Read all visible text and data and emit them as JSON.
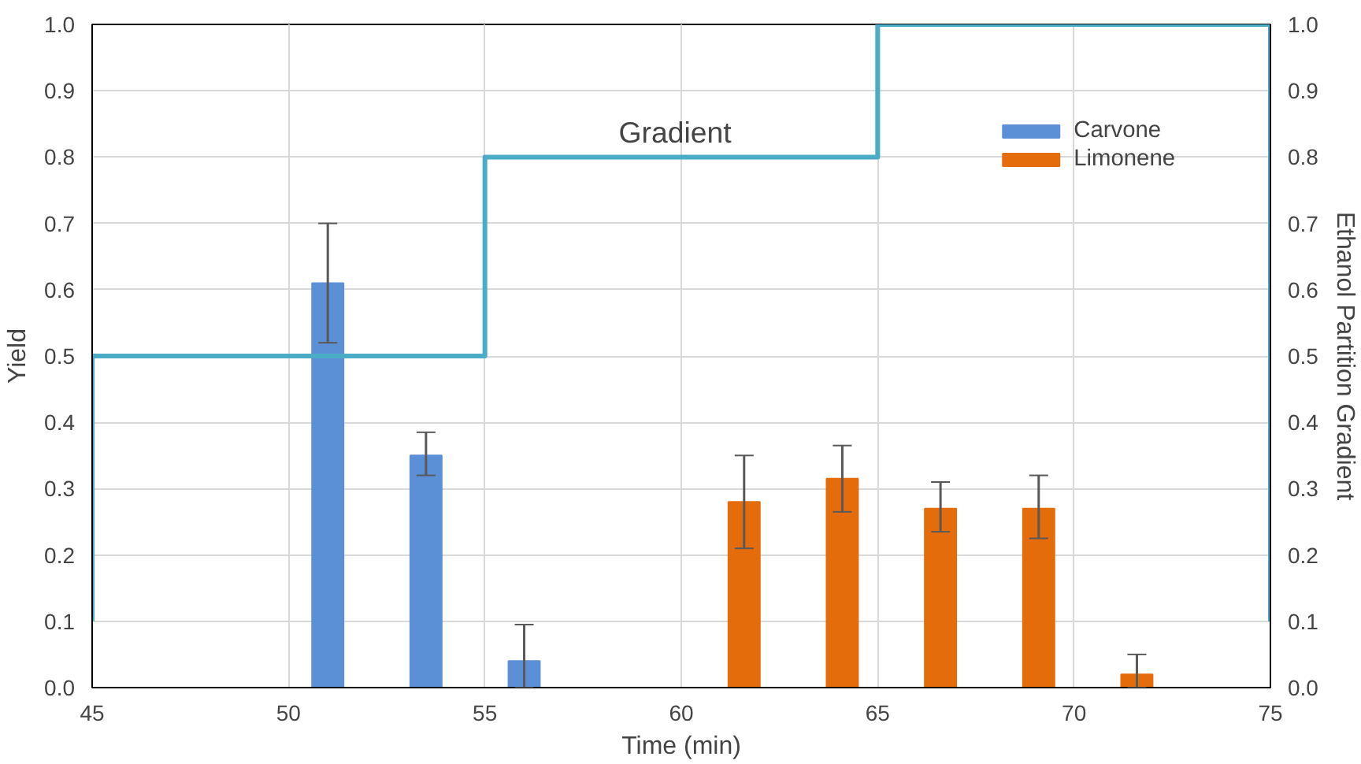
{
  "chart_data": {
    "type": "bar",
    "xlabel": "Time (min)",
    "ylabel": "Yield",
    "y2label": "Ethanol Partition Gradient",
    "xlim": [
      45,
      75
    ],
    "xticks": [
      45,
      50,
      55,
      60,
      65,
      70,
      75
    ],
    "ylim": [
      0,
      1
    ],
    "yticks": [
      {
        "value": 0,
        "label": "0.0"
      },
      0.1,
      0.2,
      0.3,
      0.4,
      0.5,
      0.6,
      0.7,
      0.8,
      0.9,
      {
        "value": 1,
        "label": "1.0"
      }
    ],
    "y2lim": [
      0,
      1
    ],
    "y2ticks": [
      {
        "value": 0,
        "label": "0.0"
      },
      0.1,
      0.2,
      0.3,
      0.4,
      0.5,
      0.6,
      0.7,
      0.8,
      0.9,
      {
        "value": 1,
        "label": "1.0"
      }
    ],
    "grid": true,
    "legend": "top right",
    "series": [
      {
        "name": "Carvone",
        "color": "#5b8fd6",
        "x": [
          51.0,
          53.5,
          56.0
        ],
        "values": [
          0.61,
          0.35,
          0.04
        ],
        "errors": [
          [
            0.52,
            0.7
          ],
          [
            0.32,
            0.385
          ],
          [
            0.0,
            0.095
          ]
        ]
      },
      {
        "name": "Limonene",
        "color": "#e46c0a",
        "x": [
          61.6,
          64.1,
          66.6,
          69.1,
          71.6
        ],
        "values": [
          0.28,
          0.315,
          0.27,
          0.27,
          0.02
        ],
        "errors": [
          [
            0.21,
            0.35
          ],
          [
            0.265,
            0.365
          ],
          [
            0.235,
            0.31
          ],
          [
            0.225,
            0.32
          ],
          [
            0.0,
            0.05
          ]
        ]
      },
      {
        "type": "line",
        "axis": "y2",
        "color": "#4bacc6",
        "x": [
          45,
          45,
          55,
          55,
          65,
          65,
          75,
          75
        ],
        "values": [
          0.1,
          0.5,
          0.5,
          0.8,
          0.8,
          1.0,
          1.0,
          0.1
        ]
      }
    ],
    "annotations": [
      "Gradient"
    ]
  }
}
